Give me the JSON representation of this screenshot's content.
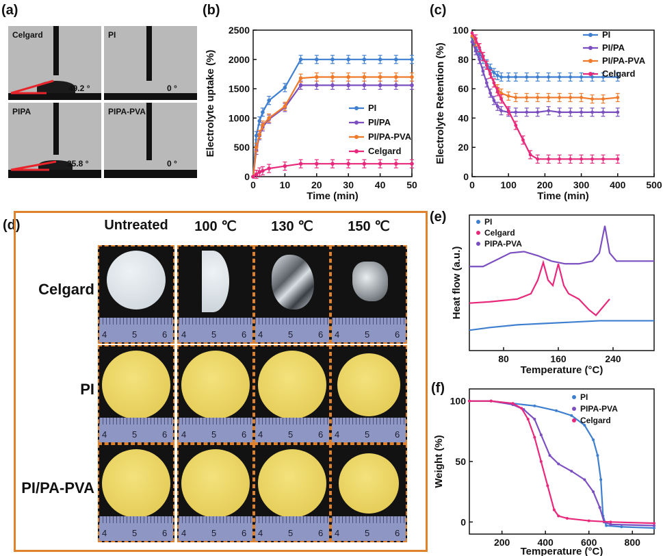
{
  "panels": {
    "a": {
      "letter": "(a)",
      "photos": [
        {
          "label": "Celgard",
          "angle": "49.2 °"
        },
        {
          "label": "PI",
          "angle": "0 °"
        },
        {
          "label": "PIPA",
          "angle": "35.8 °"
        },
        {
          "label": "PIPA-PVA",
          "angle": "0 °"
        }
      ]
    },
    "b": {
      "letter": "(b)"
    },
    "c": {
      "letter": "(c)"
    },
    "d": {
      "letter": "(d)",
      "columns": [
        "Untreated",
        "100 ℃",
        "130 ℃",
        "150 ℃"
      ],
      "rows": [
        "Celgard",
        "PI",
        "PI/PA-PVA"
      ],
      "ruler_ticks": [
        "4",
        "5",
        "6"
      ]
    },
    "e": {
      "letter": "(e)"
    },
    "f": {
      "letter": "(f)"
    }
  },
  "chart_data": [
    {
      "id": "b",
      "type": "line",
      "xlabel": "Time (min)",
      "ylabel": "Electrolyte uptake (%)",
      "xlim": [
        0,
        50
      ],
      "ylim": [
        0,
        2500
      ],
      "xticks": [
        "0",
        "10",
        "20",
        "30",
        "40",
        "50"
      ],
      "yticks": [
        "0",
        "500",
        "1000",
        "1500",
        "2000",
        "2500"
      ],
      "legend_position": "right",
      "x": [
        0,
        1,
        2,
        3,
        5,
        10,
        15,
        20,
        25,
        30,
        35,
        40,
        45,
        50
      ],
      "series": [
        {
          "name": "PI",
          "color": "#3f7fd0",
          "values": [
            0,
            700,
            950,
            1100,
            1300,
            1520,
            2000,
            2000,
            2000,
            2000,
            2000,
            2000,
            2000,
            2000
          ]
        },
        {
          "name": "PI/PA",
          "color": "#7b4fc0",
          "values": [
            0,
            450,
            700,
            850,
            980,
            1180,
            1560,
            1560,
            1560,
            1560,
            1560,
            1560,
            1560,
            1560
          ]
        },
        {
          "name": "PI/PA-PVA",
          "color": "#f07a2a",
          "values": [
            0,
            500,
            720,
            880,
            1000,
            1200,
            1680,
            1700,
            1700,
            1700,
            1700,
            1700,
            1700,
            1700
          ]
        },
        {
          "name": "Celgard",
          "color": "#e8287a",
          "values": [
            0,
            40,
            80,
            100,
            140,
            180,
            220,
            220,
            220,
            220,
            220,
            220,
            220,
            220
          ]
        }
      ]
    },
    {
      "id": "c",
      "type": "line",
      "xlabel": "Time (min)",
      "ylabel": "Electrolyte Retention (%)",
      "xlim": [
        0,
        500
      ],
      "ylim": [
        0,
        100
      ],
      "xticks": [
        "0",
        "100",
        "200",
        "300",
        "400",
        "500"
      ],
      "yticks": [
        "0",
        "20",
        "40",
        "60",
        "80",
        "100"
      ],
      "legend_position": "top-right",
      "series": [
        {
          "name": "PI",
          "color": "#3f7fd0",
          "x": [
            0,
            10,
            20,
            30,
            40,
            50,
            60,
            70,
            80,
            100,
            120,
            150,
            180,
            210,
            240,
            270,
            300,
            330,
            360,
            400
          ],
          "values": [
            95,
            88,
            84,
            80,
            77,
            74,
            71,
            69,
            68,
            68,
            68,
            68,
            68,
            68,
            68,
            68,
            68,
            68,
            68,
            68
          ]
        },
        {
          "name": "PI/PA",
          "color": "#7b4fc0",
          "x": [
            0,
            10,
            20,
            30,
            40,
            50,
            60,
            70,
            80,
            100,
            120,
            150,
            180,
            210,
            240,
            270,
            300,
            330,
            360,
            400
          ],
          "values": [
            92,
            86,
            80,
            72,
            64,
            57,
            52,
            48,
            45,
            44,
            44,
            44,
            44,
            45,
            44,
            44,
            44,
            44,
            44,
            44
          ]
        },
        {
          "name": "PI/PA-PVA",
          "color": "#f07a2a",
          "x": [
            0,
            10,
            20,
            30,
            40,
            50,
            60,
            70,
            80,
            100,
            120,
            150,
            180,
            210,
            240,
            270,
            300,
            330,
            360,
            400
          ],
          "values": [
            96,
            92,
            88,
            82,
            76,
            70,
            64,
            60,
            57,
            55,
            54,
            54,
            54,
            54,
            54,
            54,
            54,
            53,
            53,
            54
          ]
        },
        {
          "name": "Celgard",
          "color": "#e8287a",
          "x": [
            0,
            10,
            20,
            30,
            40,
            50,
            60,
            70,
            80,
            100,
            120,
            140,
            160,
            180,
            210,
            240,
            270,
            300,
            330,
            360,
            400
          ],
          "values": [
            98,
            94,
            88,
            82,
            76,
            70,
            64,
            58,
            53,
            45,
            35,
            25,
            15,
            12,
            12,
            12,
            12,
            12,
            12,
            12,
            12
          ]
        }
      ]
    },
    {
      "id": "e",
      "type": "line",
      "xlabel": "Temperature (°C)",
      "ylabel": "Heat flow (a.u.)",
      "xlim": [
        30,
        300
      ],
      "ylim": [
        0,
        100
      ],
      "xticks": [
        "80",
        "160",
        "240"
      ],
      "legend_position": "top-left",
      "series": [
        {
          "name": "PI",
          "color": "#3f7fd0",
          "x": [
            30,
            60,
            100,
            140,
            180,
            220,
            260,
            300
          ],
          "values": [
            15,
            17,
            19,
            20,
            21,
            22,
            22,
            22
          ]
        },
        {
          "name": "Celgard",
          "color": "#e8287a",
          "x": [
            30,
            60,
            100,
            120,
            130,
            138,
            145,
            152,
            160,
            168,
            175,
            190,
            205,
            215,
            225,
            235
          ],
          "values": [
            35,
            36,
            38,
            42,
            52,
            65,
            52,
            48,
            64,
            48,
            42,
            38,
            30,
            26,
            32,
            38
          ]
        },
        {
          "name": "PIPA-PVA",
          "color": "#7b4fc0",
          "x": [
            30,
            50,
            70,
            90,
            110,
            130,
            150,
            170,
            190,
            210,
            220,
            228,
            235,
            245,
            260,
            300
          ],
          "values": [
            62,
            62,
            67,
            72,
            73,
            70,
            66,
            64,
            64,
            66,
            72,
            92,
            72,
            66,
            66,
            66
          ]
        }
      ]
    },
    {
      "id": "f",
      "type": "line",
      "xlabel": "Temperature (°C)",
      "ylabel": "Weight (%)",
      "xlim": [
        50,
        900
      ],
      "ylim": [
        -10,
        110
      ],
      "xticks": [
        "200",
        "400",
        "600",
        "800"
      ],
      "yticks": [
        "0",
        "50",
        "100"
      ],
      "legend_position": "top-right",
      "series": [
        {
          "name": "PI",
          "color": "#3f7fd0",
          "x": [
            50,
            150,
            250,
            350,
            450,
            520,
            580,
            620,
            640,
            655,
            665,
            680,
            750,
            900
          ],
          "values": [
            100,
            100,
            98,
            96,
            92,
            88,
            80,
            68,
            55,
            35,
            5,
            -3,
            -4,
            -5
          ]
        },
        {
          "name": "PIPA-PVA",
          "color": "#7b4fc0",
          "x": [
            50,
            150,
            250,
            300,
            350,
            380,
            420,
            460,
            520,
            580,
            620,
            650,
            670,
            700,
            900
          ],
          "values": [
            100,
            100,
            97,
            93,
            85,
            72,
            55,
            48,
            42,
            35,
            25,
            12,
            0,
            -2,
            -3
          ]
        },
        {
          "name": "Celgard",
          "color": "#e8287a",
          "x": [
            50,
            150,
            250,
            290,
            320,
            350,
            380,
            410,
            440,
            460,
            500,
            600,
            700,
            900
          ],
          "values": [
            100,
            100,
            98,
            94,
            85,
            70,
            50,
            30,
            10,
            5,
            3,
            1,
            0,
            -1
          ]
        }
      ]
    }
  ]
}
